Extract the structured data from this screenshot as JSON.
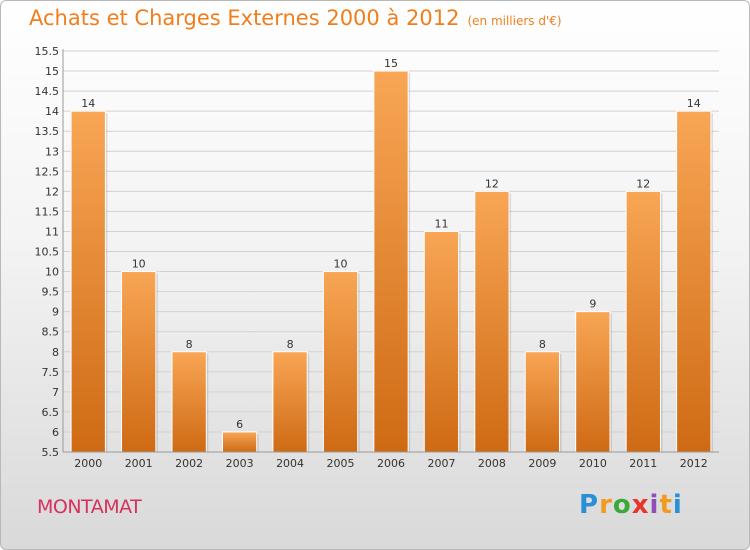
{
  "title": "Achats et Charges Externes 2000 à 2012",
  "subtitle": "(en milliers d'€)",
  "town": "MONTAMAT",
  "logo": {
    "letters": [
      "P",
      "r",
      "o",
      "x",
      "i",
      "t",
      "i"
    ],
    "colors": [
      "#2a8fd4",
      "#f29a1c",
      "#3aa93a",
      "#e8342b",
      "#8e4fb8",
      "#f29a1c",
      "#2a8fd4"
    ]
  },
  "colors": {
    "bar_top": "#f8a655",
    "bar_bottom": "#cf6a14",
    "accent": "#f07e1c"
  },
  "chart_data": {
    "type": "bar",
    "categories": [
      "2000",
      "2001",
      "2002",
      "2003",
      "2004",
      "2005",
      "2006",
      "2007",
      "2008",
      "2009",
      "2010",
      "2011",
      "2012"
    ],
    "values": [
      14,
      10,
      8,
      6,
      8,
      10,
      15,
      11,
      12,
      8,
      9,
      12,
      14
    ],
    "value_labels": [
      "14",
      "10",
      "8",
      "6",
      "8",
      "10",
      "15",
      "11",
      "12",
      "8",
      "9",
      "12",
      "14"
    ],
    "y_ticks": [
      "5.5",
      "6",
      "6.5",
      "7",
      "7.5",
      "8",
      "8.5",
      "9",
      "9.5",
      "10",
      "10.5",
      "11",
      "11.5",
      "12",
      "12.5",
      "13",
      "13.5",
      "14",
      "14.5",
      "15",
      "15.5"
    ],
    "ylim": [
      5.5,
      15.5
    ],
    "grid": true,
    "xlabel": "",
    "ylabel": ""
  }
}
